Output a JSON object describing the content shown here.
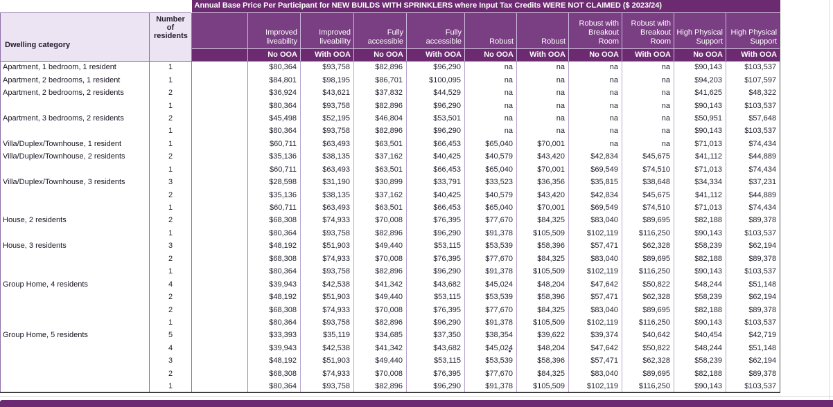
{
  "colors": {
    "title_band": "#6C2B70",
    "group_band": "#7A3E83",
    "ooa_band": "#6C2B70",
    "left_header_bg": "#EDE4F3",
    "footer_band": "#6B2A71"
  },
  "table": {
    "title": "Annual Base Price Per Participant for NEW BUILDS WITH SPRINKLERS where Input Tax Credits WERE NOT CLAIMED ($ 2023/24)",
    "left_headers": [
      "Dwelling category",
      "Number of residents"
    ],
    "column_groups": [
      "Improved liveability",
      "Improved liveability",
      "Fully accessible",
      "Fully accessible",
      "Robust",
      "Robust",
      "Robust with Breakout Room",
      "Robust with Breakout Room",
      "High Physical Support",
      "High Physical Support"
    ],
    "ooa_labels": [
      "No OOA",
      "With OOA",
      "No OOA",
      "With OOA",
      "No OOA",
      "With OOA",
      "No OOA",
      "With OOA",
      "No OOA",
      "With OOA"
    ],
    "rows": [
      {
        "category": "Apartment, 1 bedroom, 1 resident",
        "residents": "1",
        "values": [
          "$80,364",
          "$93,758",
          "$82,896",
          "$96,290",
          "na",
          "na",
          "na",
          "na",
          "$90,143",
          "$103,537"
        ]
      },
      {
        "category": "Apartment, 2 bedrooms, 1 resident",
        "residents": "1",
        "values": [
          "$84,801",
          "$98,195",
          "$86,701",
          "$100,095",
          "na",
          "na",
          "na",
          "na",
          "$94,203",
          "$107,597"
        ]
      },
      {
        "category": "Apartment, 2 bedrooms, 2 residents",
        "residents": "2",
        "values": [
          "$36,924",
          "$43,621",
          "$37,832",
          "$44,529",
          "na",
          "na",
          "na",
          "na",
          "$41,625",
          "$48,322"
        ]
      },
      {
        "category": "",
        "residents": "1",
        "values": [
          "$80,364",
          "$93,758",
          "$82,896",
          "$96,290",
          "na",
          "na",
          "na",
          "na",
          "$90,143",
          "$103,537"
        ]
      },
      {
        "category": "Apartment, 3 bedrooms, 2 residents",
        "residents": "2",
        "values": [
          "$45,498",
          "$52,195",
          "$46,804",
          "$53,501",
          "na",
          "na",
          "na",
          "na",
          "$50,951",
          "$57,648"
        ]
      },
      {
        "category": "",
        "residents": "1",
        "values": [
          "$80,364",
          "$93,758",
          "$82,896",
          "$96,290",
          "na",
          "na",
          "na",
          "na",
          "$90,143",
          "$103,537"
        ]
      },
      {
        "category": "Villa/Duplex/Townhouse, 1 resident",
        "residents": "1",
        "values": [
          "$60,711",
          "$63,493",
          "$63,501",
          "$66,453",
          "$65,040",
          "$70,001",
          "na",
          "na",
          "$71,013",
          "$74,434"
        ]
      },
      {
        "category": "Villa/Duplex/Townhouse, 2 residents",
        "residents": "2",
        "values": [
          "$35,136",
          "$38,135",
          "$37,162",
          "$40,425",
          "$40,579",
          "$43,420",
          "$42,834",
          "$45,675",
          "$41,112",
          "$44,889"
        ]
      },
      {
        "category": "",
        "residents": "1",
        "values": [
          "$60,711",
          "$63,493",
          "$63,501",
          "$66,453",
          "$65,040",
          "$70,001",
          "$69,549",
          "$74,510",
          "$71,013",
          "$74,434"
        ]
      },
      {
        "category": "Villa/Duplex/Townhouse, 3 residents",
        "residents": "3",
        "values": [
          "$28,598",
          "$31,190",
          "$30,899",
          "$33,791",
          "$33,523",
          "$36,356",
          "$35,815",
          "$38,648",
          "$34,334",
          "$37,231"
        ]
      },
      {
        "category": "",
        "residents": "2",
        "values": [
          "$35,136",
          "$38,135",
          "$37,162",
          "$40,425",
          "$40,579",
          "$43,420",
          "$42,834",
          "$45,675",
          "$41,112",
          "$44,889"
        ]
      },
      {
        "category": "",
        "residents": "1",
        "values": [
          "$60,711",
          "$63,493",
          "$63,501",
          "$66,453",
          "$65,040",
          "$70,001",
          "$69,549",
          "$74,510",
          "$71,013",
          "$74,434"
        ]
      },
      {
        "category": "House, 2 residents",
        "residents": "2",
        "values": [
          "$68,308",
          "$74,933",
          "$70,008",
          "$76,395",
          "$77,670",
          "$84,325",
          "$83,040",
          "$89,695",
          "$82,188",
          "$89,378"
        ]
      },
      {
        "category": "",
        "residents": "1",
        "values": [
          "$80,364",
          "$93,758",
          "$82,896",
          "$96,290",
          "$91,378",
          "$105,509",
          "$102,119",
          "$116,250",
          "$90,143",
          "$103,537"
        ]
      },
      {
        "category": "House, 3 residents",
        "residents": "3",
        "values": [
          "$48,192",
          "$51,903",
          "$49,440",
          "$53,115",
          "$53,539",
          "$58,396",
          "$57,471",
          "$62,328",
          "$58,239",
          "$62,194"
        ]
      },
      {
        "category": "",
        "residents": "2",
        "values": [
          "$68,308",
          "$74,933",
          "$70,008",
          "$76,395",
          "$77,670",
          "$84,325",
          "$83,040",
          "$89,695",
          "$82,188",
          "$89,378"
        ]
      },
      {
        "category": "",
        "residents": "1",
        "values": [
          "$80,364",
          "$93,758",
          "$82,896",
          "$96,290",
          "$91,378",
          "$105,509",
          "$102,119",
          "$116,250",
          "$90,143",
          "$103,537"
        ]
      },
      {
        "category": "Group Home, 4 residents",
        "residents": "4",
        "values": [
          "$39,943",
          "$42,538",
          "$41,342",
          "$43,682",
          "$45,024",
          "$48,204",
          "$47,642",
          "$50,822",
          "$48,244",
          "$51,148"
        ]
      },
      {
        "category": "",
        "residents": "2",
        "values": [
          "$48,192",
          "$51,903",
          "$49,440",
          "$53,115",
          "$53,539",
          "$58,396",
          "$57,471",
          "$62,328",
          "$58,239",
          "$62,194"
        ]
      },
      {
        "category": "",
        "residents": "2",
        "values": [
          "$68,308",
          "$74,933",
          "$70,008",
          "$76,395",
          "$77,670",
          "$84,325",
          "$83,040",
          "$89,695",
          "$82,188",
          "$89,378"
        ]
      },
      {
        "category": "",
        "residents": "1",
        "values": [
          "$80,364",
          "$93,758",
          "$82,896",
          "$96,290",
          "$91,378",
          "$105,509",
          "$102,119",
          "$116,250",
          "$90,143",
          "$103,537"
        ]
      },
      {
        "category": "Group Home, 5 residents",
        "residents": "5",
        "values": [
          "$33,393",
          "$35,119",
          "$34,685",
          "$37,350",
          "$38,354",
          "$39,622",
          "$39,374",
          "$40,642",
          "$40,454",
          "$42,719"
        ]
      },
      {
        "category": "",
        "residents": "4",
        "values": [
          "$39,943",
          "$42,538",
          "$41,342",
          "$43,682",
          "$45,024",
          "$48,204",
          "$47,642",
          "$50,822",
          "$48,244",
          "$51,148"
        ]
      },
      {
        "category": "",
        "residents": "3",
        "values": [
          "$48,192",
          "$51,903",
          "$49,440",
          "$53,115",
          "$53,539",
          "$58,396",
          "$57,471",
          "$62,328",
          "$58,239",
          "$62,194"
        ]
      },
      {
        "category": "",
        "residents": "2",
        "values": [
          "$68,308",
          "$74,933",
          "$70,008",
          "$76,395",
          "$77,670",
          "$84,325",
          "$83,040",
          "$89,695",
          "$82,188",
          "$89,378"
        ]
      },
      {
        "category": "",
        "residents": "1",
        "values": [
          "$80,364",
          "$93,758",
          "$82,896",
          "$96,290",
          "$91,378",
          "$105,509",
          "$102,119",
          "$116,250",
          "$90,143",
          "$103,537"
        ]
      }
    ]
  }
}
